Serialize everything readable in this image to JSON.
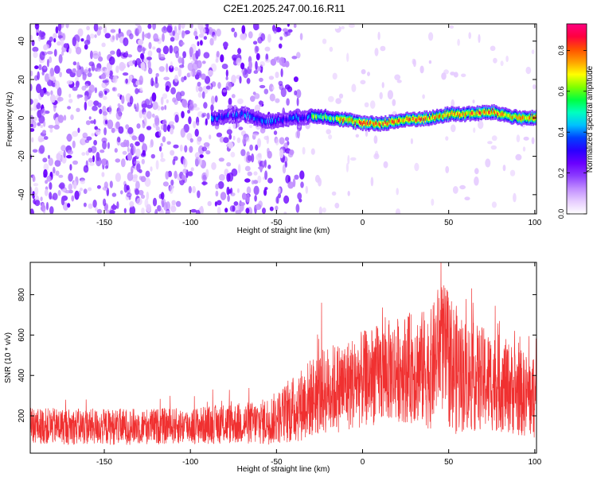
{
  "title": "C2E1.2025.247.00.16.R11",
  "chart_data": [
    {
      "type": "heatmap",
      "title": "C2E1.2025.247.00.16.R11",
      "xlabel": "Height of straight line (km)",
      "ylabel": "Frequency (Hz)",
      "xlim": [
        -193,
        101
      ],
      "ylim": [
        -50,
        49
      ],
      "xticks": [
        -150,
        -100,
        -50,
        0,
        50,
        100
      ],
      "yticks": [
        -40,
        -20,
        0,
        20,
        40
      ],
      "colorbar": {
        "label": "Normalized spectral amplitude",
        "range": [
          0.0,
          0.93
        ],
        "ticks": [
          0.0,
          0.2,
          0.4,
          0.6,
          0.8
        ],
        "colors": [
          "#ffffff",
          "#e6ccff",
          "#c08cff",
          "#8c3cff",
          "#6a00ff",
          "#2a00ff",
          "#0040ff",
          "#00c0ff",
          "#00ffc0",
          "#00ff40",
          "#80ff00",
          "#ffff00",
          "#ffa000",
          "#ff5000",
          "#ff0040",
          "#ff0080"
        ]
      },
      "ridge": {
        "description_points": [
          [
            -85,
            0
          ],
          [
            -70,
            2
          ],
          [
            -55,
            -2
          ],
          [
            -40,
            0
          ],
          [
            -25,
            1
          ],
          [
            -10,
            -1
          ],
          [
            0,
            -3
          ],
          [
            10,
            -3
          ],
          [
            25,
            -1
          ],
          [
            40,
            0
          ],
          [
            50,
            2
          ],
          [
            60,
            2
          ],
          [
            75,
            3
          ],
          [
            90,
            0
          ],
          [
            101,
            0
          ]
        ]
      }
    },
    {
      "type": "line",
      "xlabel": "Height of straight line (km)",
      "ylabel": "SNR (10 * v/v)",
      "xlim": [
        -193,
        101
      ],
      "ylim": [
        15,
        960
      ],
      "xticks": [
        -150,
        -100,
        -50,
        0,
        50,
        100
      ],
      "yticks": [
        200,
        400,
        600,
        800
      ],
      "series": [
        {
          "name": "SNR",
          "color": "#f03030",
          "envelope_x": [
            -193,
            -150,
            -100,
            -80,
            -60,
            -50,
            -40,
            -30,
            -20,
            -10,
            0,
            10,
            20,
            30,
            40,
            45,
            50,
            55,
            60,
            70,
            80,
            90,
            101
          ],
          "envelope_mid": [
            150,
            145,
            150,
            160,
            165,
            190,
            230,
            290,
            330,
            350,
            380,
            410,
            430,
            440,
            430,
            560,
            480,
            420,
            400,
            380,
            360,
            320,
            280
          ],
          "envelope_spread": [
            90,
            90,
            90,
            100,
            110,
            130,
            170,
            200,
            220,
            230,
            240,
            250,
            260,
            280,
            300,
            320,
            340,
            320,
            280,
            260,
            240,
            220,
            200
          ]
        }
      ]
    }
  ]
}
